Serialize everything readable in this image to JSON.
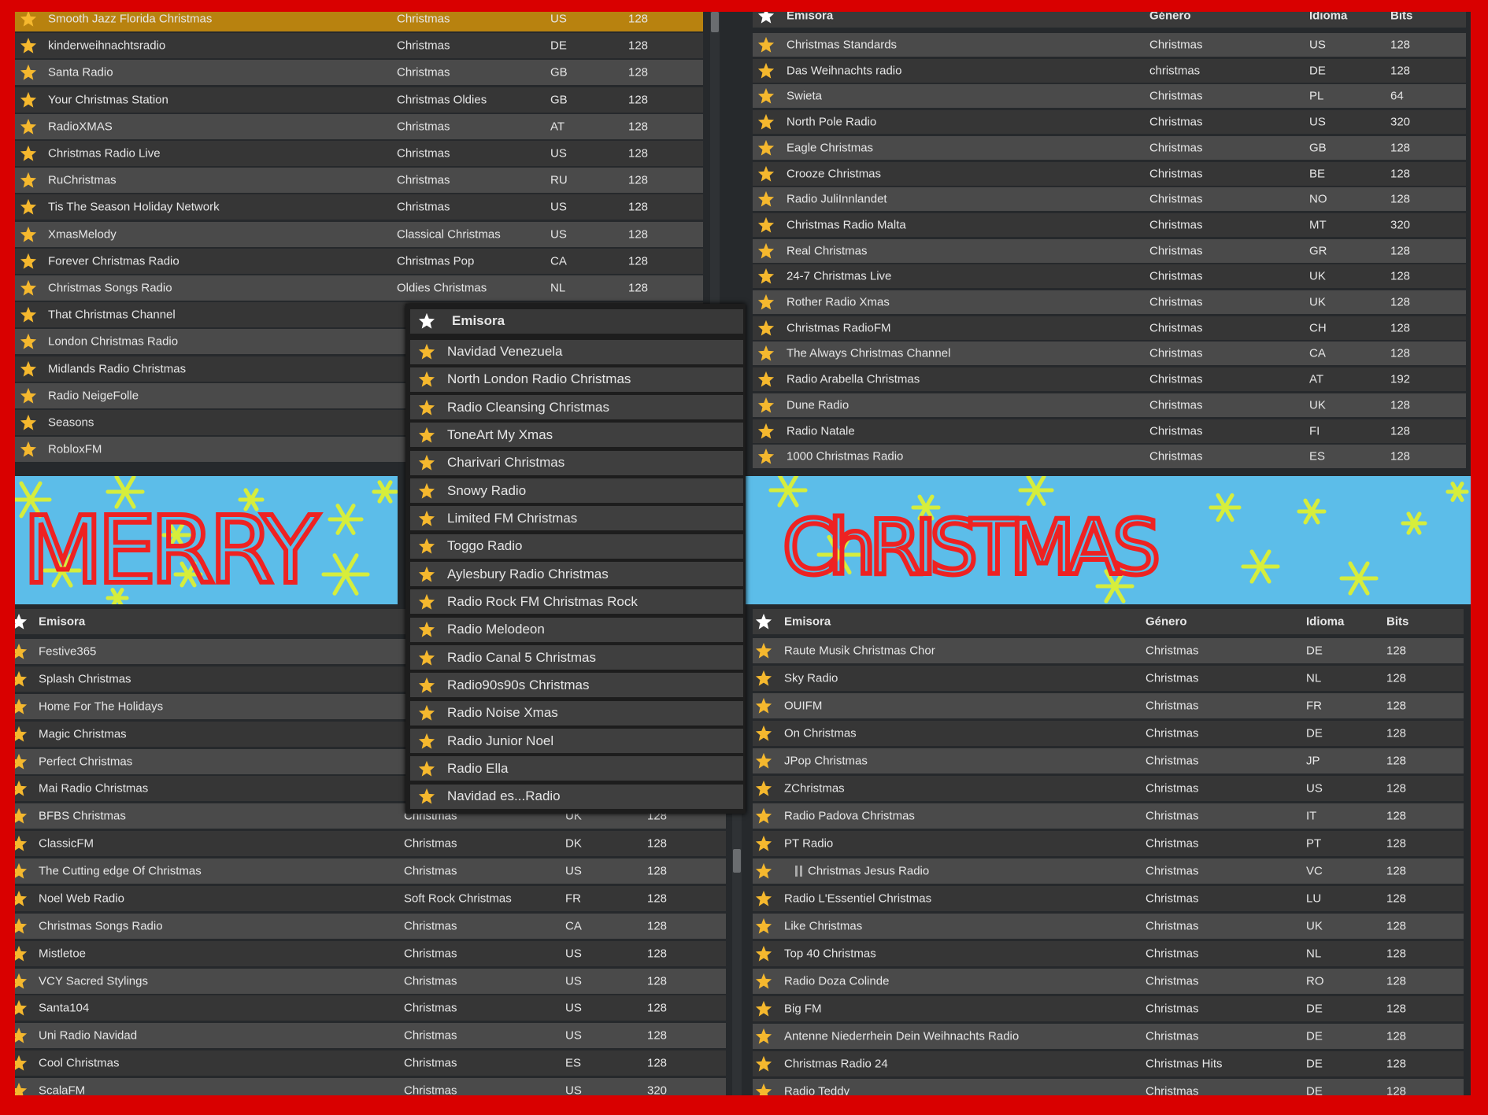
{
  "colors": {
    "frame": "#d90000",
    "star": "#f5b82e",
    "selected_row": "#b8820f",
    "banner_bg": "#5cbde9",
    "banner_text": "#ee2222"
  },
  "banners": {
    "left": "MERRY",
    "right": "ChRISTMAS"
  },
  "panel_a": {
    "selected_index": 0,
    "rows": [
      {
        "name": "Smooth Jazz Florida Christmas",
        "genre": "Christmas",
        "lang": "US",
        "bits": "128"
      },
      {
        "name": "kinderweihnachtsradio",
        "genre": "Christmas",
        "lang": "DE",
        "bits": "128"
      },
      {
        "name": "Santa Radio",
        "genre": "Christmas",
        "lang": "GB",
        "bits": "128"
      },
      {
        "name": "Your Christmas Station",
        "genre": "Christmas Oldies",
        "lang": "GB",
        "bits": "128"
      },
      {
        "name": "RadioXMAS",
        "genre": "Christmas",
        "lang": "AT",
        "bits": "128"
      },
      {
        "name": "Christmas Radio Live",
        "genre": "Christmas",
        "lang": "US",
        "bits": "128"
      },
      {
        "name": "RuChristmas",
        "genre": "Christmas",
        "lang": "RU",
        "bits": "128"
      },
      {
        "name": "Tis The Season Holiday Network",
        "genre": "Christmas",
        "lang": "US",
        "bits": "128"
      },
      {
        "name": "XmasMelody",
        "genre": "Classical Christmas",
        "lang": "US",
        "bits": "128"
      },
      {
        "name": "Forever Christmas Radio",
        "genre": "Christmas Pop",
        "lang": "CA",
        "bits": "128"
      },
      {
        "name": "Christmas Songs Radio",
        "genre": "Oldies Christmas",
        "lang": "NL",
        "bits": "128"
      },
      {
        "name": "That Christmas Channel"
      },
      {
        "name": "London Christmas Radio"
      },
      {
        "name": "Midlands Radio Christmas"
      },
      {
        "name": "Radio NeigeFolle"
      },
      {
        "name": "Seasons"
      },
      {
        "name": "RobloxFM"
      }
    ]
  },
  "panel_b": {
    "header": {
      "name": "Emisora",
      "genre": "Género",
      "lang": "Idioma",
      "bits": "Bits"
    },
    "rows": [
      {
        "name": "Christmas Standards",
        "genre": "Christmas",
        "lang": "US",
        "bits": "128"
      },
      {
        "name": "Das Weihnachts radio",
        "genre": "christmas",
        "lang": "DE",
        "bits": "128"
      },
      {
        "name": "Swieta",
        "genre": "Christmas",
        "lang": "PL",
        "bits": "64"
      },
      {
        "name": "North Pole Radio",
        "genre": "Christmas",
        "lang": "US",
        "bits": "320"
      },
      {
        "name": "Eagle Christmas",
        "genre": "Christmas",
        "lang": "GB",
        "bits": "128"
      },
      {
        "name": "Crooze Christmas",
        "genre": "Christmas",
        "lang": "BE",
        "bits": "128"
      },
      {
        "name": "Radio JuliInnlandet",
        "genre": "Christmas",
        "lang": "NO",
        "bits": "128"
      },
      {
        "name": "Christmas Radio Malta",
        "genre": "Christmas",
        "lang": "MT",
        "bits": "320"
      },
      {
        "name": "Real Christmas",
        "genre": "Christmas",
        "lang": "GR",
        "bits": "128"
      },
      {
        "name": "24-7 Christmas Live",
        "genre": "Christmas",
        "lang": "UK",
        "bits": "128"
      },
      {
        "name": "Rother Radio Xmas",
        "genre": "Christmas",
        "lang": "UK",
        "bits": "128"
      },
      {
        "name": "Christmas RadioFM",
        "genre": "Christmas",
        "lang": "CH",
        "bits": "128"
      },
      {
        "name": "The Always Christmas Channel",
        "genre": "Christmas",
        "lang": "CA",
        "bits": "128"
      },
      {
        "name": "Radio Arabella Christmas",
        "genre": "Christmas",
        "lang": "AT",
        "bits": "192"
      },
      {
        "name": "Dune Radio",
        "genre": "Christmas",
        "lang": "UK",
        "bits": "128"
      },
      {
        "name": "Radio Natale",
        "genre": "Christmas",
        "lang": "FI",
        "bits": "128"
      },
      {
        "name": "1000 Christmas Radio",
        "genre": "Christmas",
        "lang": "ES",
        "bits": "128"
      }
    ]
  },
  "panel_c": {
    "header": {
      "name": "Emisora"
    },
    "rows": [
      {
        "name": "Navidad Venezuela"
      },
      {
        "name": "North London Radio Christmas"
      },
      {
        "name": "Radio Cleansing Christmas"
      },
      {
        "name": "ToneArt My Xmas"
      },
      {
        "name": "Charivari Christmas"
      },
      {
        "name": "Snowy Radio"
      },
      {
        "name": "Limited FM Christmas"
      },
      {
        "name": "Toggo Radio"
      },
      {
        "name": "Aylesbury Radio Christmas"
      },
      {
        "name": "Radio Rock FM Christmas Rock"
      },
      {
        "name": "Radio Melodeon"
      },
      {
        "name": "Radio Canal 5 Christmas"
      },
      {
        "name": "Radio90s90s Christmas"
      },
      {
        "name": "Radio Noise Xmas"
      },
      {
        "name": "Radio Junior Noel"
      },
      {
        "name": "Radio Ella"
      },
      {
        "name": "Navidad es...Radio"
      }
    ]
  },
  "panel_d": {
    "header": {
      "name": "Emisora"
    },
    "rows": [
      {
        "name": "Festive365"
      },
      {
        "name": "Splash Christmas"
      },
      {
        "name": "Home For The Holidays"
      },
      {
        "name": "Magic Christmas"
      },
      {
        "name": "Perfect Christmas"
      },
      {
        "name": "Mai Radio Christmas"
      },
      {
        "name": "BFBS Christmas",
        "genre": "Christmas",
        "lang": "UK",
        "bits": "128"
      },
      {
        "name": "ClassicFM",
        "genre": "Christmas",
        "lang": "DK",
        "bits": "128"
      },
      {
        "name": "The Cutting edge Of Christmas",
        "genre": "Christmas",
        "lang": "US",
        "bits": "128"
      },
      {
        "name": "Noel Web Radio",
        "genre": "Soft Rock Christmas",
        "lang": "FR",
        "bits": "128"
      },
      {
        "name": "Christmas Songs Radio",
        "genre": "Christmas",
        "lang": "CA",
        "bits": "128"
      },
      {
        "name": "Mistletoe",
        "genre": "Christmas",
        "lang": "US",
        "bits": "128"
      },
      {
        "name": "VCY Sacred Stylings",
        "genre": "Christmas",
        "lang": "US",
        "bits": "128"
      },
      {
        "name": "Santa104",
        "genre": "Christmas",
        "lang": "US",
        "bits": "128"
      },
      {
        "name": "Uni Radio Navidad",
        "genre": "Christmas",
        "lang": "US",
        "bits": "128"
      },
      {
        "name": "Cool Christmas",
        "genre": "Christmas",
        "lang": "ES",
        "bits": "128"
      },
      {
        "name": "ScalaFM",
        "genre": "Christmas",
        "lang": "US",
        "bits": "320"
      }
    ]
  },
  "panel_e": {
    "header": {
      "name": "Emisora",
      "genre": "Género",
      "lang": "Idioma",
      "bits": "Bits"
    },
    "playing_index": 8,
    "rows": [
      {
        "name": "Raute Musik Christmas Chor",
        "genre": "Christmas",
        "lang": "DE",
        "bits": "128"
      },
      {
        "name": "Sky Radio",
        "genre": "Christmas",
        "lang": "NL",
        "bits": "128"
      },
      {
        "name": "OUIFM",
        "genre": "Christmas",
        "lang": "FR",
        "bits": "128"
      },
      {
        "name": "On Christmas",
        "genre": "Christmas",
        "lang": "DE",
        "bits": "128"
      },
      {
        "name": "JPop Christmas",
        "genre": "Christmas",
        "lang": "JP",
        "bits": "128"
      },
      {
        "name": "ZChristmas",
        "genre": "Christmas",
        "lang": "US",
        "bits": "128"
      },
      {
        "name": "Radio Padova Christmas",
        "genre": "Christmas",
        "lang": "IT",
        "bits": "128"
      },
      {
        "name": "PT Radio",
        "genre": "Christmas",
        "lang": "PT",
        "bits": "128"
      },
      {
        "name": "Christmas Jesus Radio",
        "genre": "Christmas",
        "lang": "VC",
        "bits": "128"
      },
      {
        "name": "Radio L'Essentiel Christmas",
        "genre": "Christmas",
        "lang": "LU",
        "bits": "128"
      },
      {
        "name": "Like Christmas",
        "genre": "Christmas",
        "lang": "UK",
        "bits": "128"
      },
      {
        "name": "Top 40 Christmas",
        "genre": "Christmas",
        "lang": "NL",
        "bits": "128"
      },
      {
        "name": "Radio Doza Colinde",
        "genre": "Christmas",
        "lang": "RO",
        "bits": "128"
      },
      {
        "name": "Big FM",
        "genre": "Christmas",
        "lang": "DE",
        "bits": "128"
      },
      {
        "name": "Antenne Niederrhein Dein Weihnachts Radio",
        "genre": "Christmas",
        "lang": "DE",
        "bits": "128"
      },
      {
        "name": "Christmas Radio 24",
        "genre": "Christmas Hits",
        "lang": "DE",
        "bits": "128"
      },
      {
        "name": "Radio Teddy",
        "genre": "Christmas",
        "lang": "DE",
        "bits": "128"
      }
    ]
  }
}
